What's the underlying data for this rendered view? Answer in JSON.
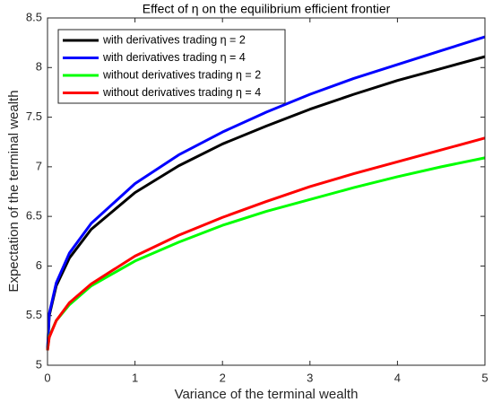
{
  "chart_data": {
    "type": "line",
    "title": "Effect of η on the equilibrium efficient frontier",
    "x_label": "Variance of the terminal wealth",
    "y_label": "Expectation of the terminal wealth",
    "x": [
      0,
      0.02,
      0.1,
      0.25,
      0.5,
      1,
      1.5,
      2,
      2.5,
      3,
      3.5,
      4,
      4.5,
      5
    ],
    "series": [
      {
        "name": "with derivatives trading η = 2",
        "color": "#000000",
        "values": [
          5.15,
          5.5,
          5.8,
          6.08,
          6.37,
          6.74,
          7.01,
          7.23,
          7.41,
          7.58,
          7.73,
          7.87,
          7.99,
          8.11
        ]
      },
      {
        "name": "with derivatives trading η = 4",
        "color": "#0000ff",
        "values": [
          5.15,
          5.52,
          5.83,
          6.13,
          6.43,
          6.83,
          7.12,
          7.35,
          7.55,
          7.73,
          7.89,
          8.03,
          8.17,
          8.31
        ]
      },
      {
        "name": "without derivatives trading η = 2",
        "color": "#00ff00",
        "values": [
          5.15,
          5.29,
          5.45,
          5.61,
          5.8,
          6.05,
          6.24,
          6.41,
          6.55,
          6.67,
          6.79,
          6.9,
          7.0,
          7.09
        ]
      },
      {
        "name": "without derivatives trading η = 4",
        "color": "#ff0000",
        "values": [
          5.15,
          5.28,
          5.45,
          5.63,
          5.82,
          6.1,
          6.31,
          6.49,
          6.65,
          6.8,
          6.93,
          7.05,
          7.17,
          7.29
        ]
      }
    ],
    "xlim": [
      0,
      5
    ],
    "ylim": [
      5,
      8.5
    ],
    "xticks": [
      0,
      1,
      2,
      3,
      4,
      5
    ],
    "yticks": [
      5,
      5.5,
      6,
      6.5,
      7,
      7.5,
      8,
      8.5
    ],
    "legend": "upper left",
    "grid": false
  }
}
